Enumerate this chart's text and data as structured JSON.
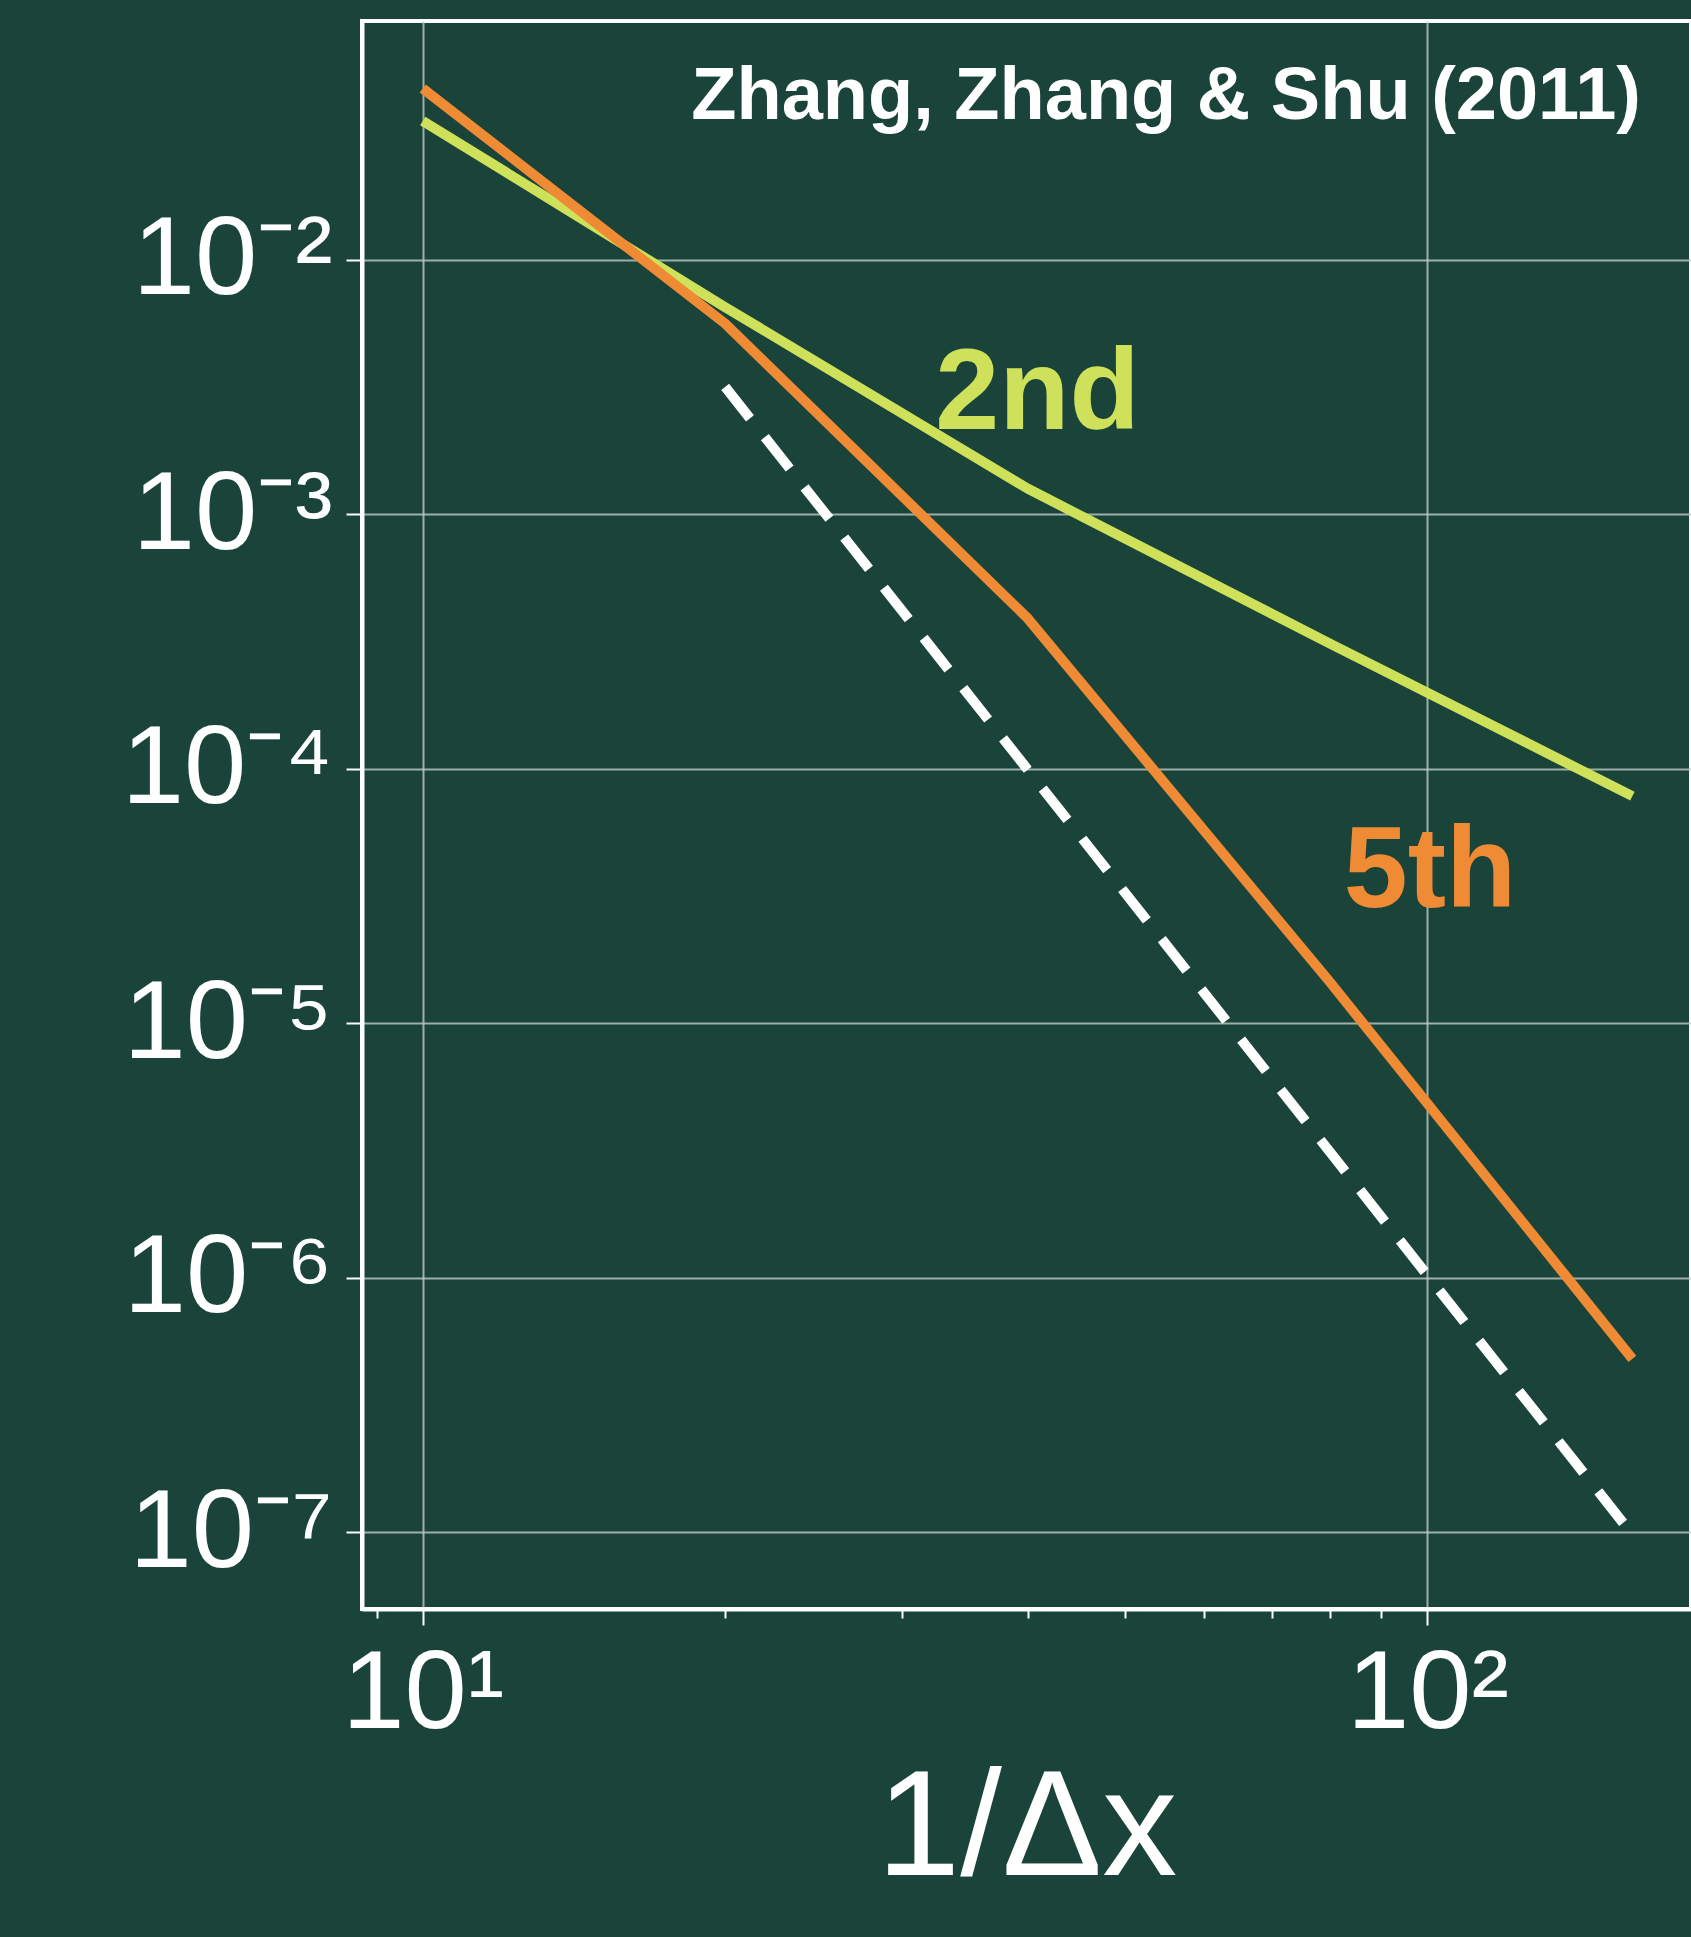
{
  "chart_data": {
    "type": "line",
    "xlabel": "1/Δx",
    "log": "xy",
    "grid": true,
    "line_style": "solid",
    "marker": "none",
    "annotations": [
      "Zhang, Zhang & Shu (2011)"
    ],
    "xlim": [
      8.7,
      183
    ],
    "ylim": [
      5e-08,
      0.0865
    ],
    "xticks": [
      {
        "value": 9,
        "label": null
      },
      {
        "value": 10,
        "label": "10¹"
      },
      {
        "value": 20,
        "label": null
      },
      {
        "value": 30,
        "label": null
      },
      {
        "value": 40,
        "label": null
      },
      {
        "value": 50,
        "label": null
      },
      {
        "value": 60,
        "label": null
      },
      {
        "value": 70,
        "label": null
      },
      {
        "value": 80,
        "label": null
      },
      {
        "value": 90,
        "label": null
      },
      {
        "value": 100,
        "label": "10²"
      }
    ],
    "yticks": [
      {
        "value": 1e-07,
        "label": "10⁻⁷"
      },
      {
        "value": 1e-06,
        "label": "10⁻⁶"
      },
      {
        "value": 1e-05,
        "label": "10⁻⁵"
      },
      {
        "value": 0.0001,
        "label": "10⁻⁴"
      },
      {
        "value": 0.001,
        "label": "10⁻³"
      },
      {
        "value": 0.01,
        "label": "10⁻²"
      }
    ],
    "series": [
      {
        "name": "2nd",
        "color": "#cfe05a",
        "x": [
          10,
          20,
          40,
          80,
          160
        ],
        "values": [
          0.035,
          0.0065,
          0.00126,
          0.00031,
          7.8e-05
        ]
      },
      {
        "name": "5th",
        "color": "#ef8a35",
        "x": [
          10,
          20,
          40,
          80,
          160
        ],
        "values": [
          0.047,
          0.0056,
          0.00039,
          1.45e-05,
          4.8e-07
        ]
      },
      {
        "color": "#ffffff",
        "line_style": "dashed",
        "x": [
          20,
          160
        ],
        "values": [
          0.00316,
          9.8e-08
        ]
      }
    ]
  }
}
